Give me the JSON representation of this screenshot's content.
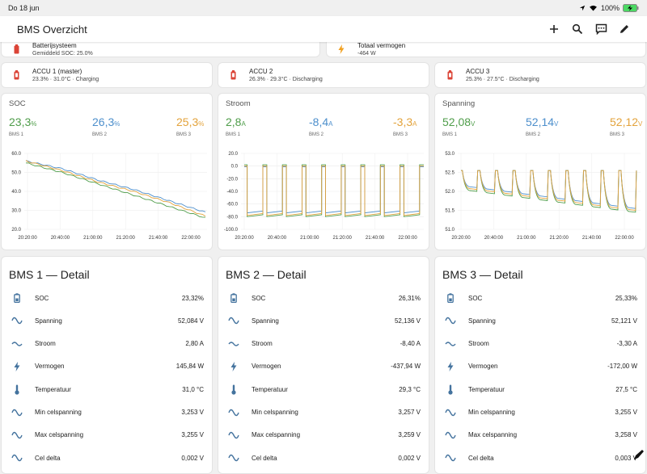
{
  "status": {
    "time": "Do 18 jun",
    "battery": "100%"
  },
  "app": {
    "title": "BMS Overzicht"
  },
  "colors": {
    "s1": "#4f9d4a",
    "s2": "#4d8fcc",
    "s3": "#e3a33c",
    "icon": "#44739e",
    "red": "#db4437",
    "bolt": "#f1a020"
  },
  "top_cards": [
    {
      "title": "Batterijsysteem",
      "sub": "Gemiddeld SOC: 25.0%"
    },
    {
      "title": "Totaal vermogen",
      "sub": "-464 W"
    }
  ],
  "accu_cards": [
    {
      "title": "ACCU 1 (master)",
      "sub": "23.3% · 31.0°C · Charging"
    },
    {
      "title": "ACCU 2",
      "sub": "26.3% · 29.3°C · Discharging"
    },
    {
      "title": "ACCU 3",
      "sub": "25.3% · 27.5°C · Discharging"
    }
  ],
  "graphs": [
    {
      "title": "SOC",
      "values": [
        "23,3",
        "26,3",
        "25,3"
      ],
      "unit": "%",
      "labels": [
        "BMS 1",
        "BMS 2",
        "BMS 3"
      ]
    },
    {
      "title": "Stroom",
      "values": [
        "2,8",
        "-8,4",
        "-3,3"
      ],
      "unit": "A",
      "labels": [
        "BMS 1",
        "BMS 2",
        "BMS 3"
      ]
    },
    {
      "title": "Spanning",
      "values": [
        "52,08",
        "52,14",
        "52,12"
      ],
      "unit": "V",
      "labels": [
        "BMS 1",
        "BMS 2",
        "BMS 3"
      ]
    }
  ],
  "chart_data": [
    {
      "type": "line",
      "x": [
        "20:20:00",
        "20:40:00",
        "21:00:00",
        "21:20:00",
        "21:40:00",
        "22:00:00"
      ],
      "ylim": [
        20,
        60
      ],
      "yticks": [
        "60.0",
        "50.0",
        "40.0",
        "30.0",
        "20.0"
      ],
      "series": [
        {
          "name": "BMS 1",
          "values": [
            55,
            50,
            44,
            38,
            32,
            26
          ]
        },
        {
          "name": "BMS 2",
          "values": [
            56,
            52,
            46,
            41,
            35,
            29
          ]
        },
        {
          "name": "BMS 3",
          "values": [
            56,
            51,
            45,
            40,
            34,
            27
          ]
        }
      ]
    },
    {
      "type": "line",
      "x": [
        "20:20:00",
        "20:40:00",
        "21:00:00",
        "21:20:00",
        "21:40:00",
        "22:00:00"
      ],
      "ylim": [
        -100,
        20
      ],
      "yticks": [
        "20.0",
        "0.0",
        "-20.0",
        "-40.0",
        "-60.0",
        "-80.0",
        "-100.0"
      ],
      "series": [
        {
          "name": "BMS 1",
          "values": [
            -78,
            2,
            -79,
            2,
            -80,
            2
          ]
        },
        {
          "name": "BMS 2",
          "values": [
            -73,
            -1,
            -74,
            -2,
            -74,
            -8
          ]
        },
        {
          "name": "BMS 3",
          "values": [
            -76,
            0,
            -77,
            0,
            -78,
            -3
          ]
        }
      ]
    },
    {
      "type": "line",
      "x": [
        "20:20:00",
        "20:40:00",
        "21:00:00",
        "21:20:00",
        "21:40:00",
        "22:00:00"
      ],
      "ylim": [
        51,
        53
      ],
      "yticks": [
        "53.0",
        "52.5",
        "52.0",
        "51.5",
        "51.0"
      ],
      "series": [
        {
          "name": "BMS 1",
          "values": [
            52.6,
            51.95,
            52.6,
            51.75,
            52.6,
            51.45
          ]
        },
        {
          "name": "BMS 2",
          "values": [
            52.6,
            52.05,
            52.6,
            51.85,
            52.6,
            51.55
          ]
        },
        {
          "name": "BMS 3",
          "values": [
            52.6,
            52.0,
            52.6,
            51.8,
            52.6,
            51.5
          ]
        }
      ]
    }
  ],
  "details": [
    {
      "title": "BMS 1 — Detail",
      "rows": [
        {
          "icon": "battery-icon",
          "name": "SOC",
          "value": "23,32%"
        },
        {
          "icon": "sine-wave-icon",
          "name": "Spanning",
          "value": "52,084 V"
        },
        {
          "icon": "current-ac-icon",
          "name": "Stroom",
          "value": "2,80 A"
        },
        {
          "icon": "flash-icon",
          "name": "Vermogen",
          "value": "145,84 W"
        },
        {
          "icon": "thermometer-icon",
          "name": "Temperatuur",
          "value": "31,0 °C"
        },
        {
          "icon": "sine-wave-icon",
          "name": "Min celspanning",
          "value": "3,253 V"
        },
        {
          "icon": "sine-wave-icon",
          "name": "Max celspanning",
          "value": "3,255 V"
        },
        {
          "icon": "sine-wave-icon",
          "name": "Cel delta",
          "value": "0,002 V"
        }
      ]
    },
    {
      "title": "BMS 2 — Detail",
      "rows": [
        {
          "icon": "battery-icon",
          "name": "SOC",
          "value": "26,31%"
        },
        {
          "icon": "sine-wave-icon",
          "name": "Spanning",
          "value": "52,136 V"
        },
        {
          "icon": "current-ac-icon",
          "name": "Stroom",
          "value": "-8,40 A"
        },
        {
          "icon": "flash-icon",
          "name": "Vermogen",
          "value": "-437,94 W"
        },
        {
          "icon": "thermometer-icon",
          "name": "Temperatuur",
          "value": "29,3 °C"
        },
        {
          "icon": "sine-wave-icon",
          "name": "Min celspanning",
          "value": "3,257 V"
        },
        {
          "icon": "sine-wave-icon",
          "name": "Max celspanning",
          "value": "3,259 V"
        },
        {
          "icon": "sine-wave-icon",
          "name": "Cel delta",
          "value": "0,002 V"
        }
      ]
    },
    {
      "title": "BMS 3 — Detail",
      "rows": [
        {
          "icon": "battery-icon",
          "name": "SOC",
          "value": "25,33%"
        },
        {
          "icon": "sine-wave-icon",
          "name": "Spanning",
          "value": "52,121 V"
        },
        {
          "icon": "current-ac-icon",
          "name": "Stroom",
          "value": "-3,30 A"
        },
        {
          "icon": "flash-icon",
          "name": "Vermogen",
          "value": "-172,00 W"
        },
        {
          "icon": "thermometer-icon",
          "name": "Temperatuur",
          "value": "27,5 °C"
        },
        {
          "icon": "sine-wave-icon",
          "name": "Min celspanning",
          "value": "3,255 V"
        },
        {
          "icon": "sine-wave-icon",
          "name": "Max celspanning",
          "value": "3,258 V"
        },
        {
          "icon": "sine-wave-icon",
          "name": "Cel delta",
          "value": "0,003 V"
        }
      ]
    }
  ]
}
